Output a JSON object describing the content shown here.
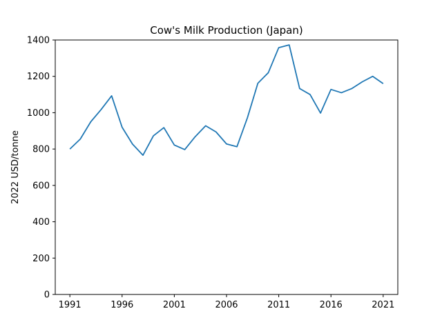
{
  "chart_data": {
    "type": "line",
    "title": "Cow's Milk Production (Japan)",
    "xlabel": "",
    "ylabel": "2022 USD/tonne",
    "xlim": [
      1989.6,
      2022.4
    ],
    "ylim": [
      0,
      1400
    ],
    "xticks": [
      1991,
      1996,
      2001,
      2006,
      2011,
      2016,
      2021
    ],
    "yticks": [
      0,
      200,
      400,
      600,
      800,
      1000,
      1200,
      1400
    ],
    "grid": false,
    "line_color": "#1f77b4",
    "series": [
      {
        "x": [
          1991,
          1992,
          1993,
          1994,
          1995,
          1996,
          1997,
          1998,
          1999,
          2000,
          2001,
          2002,
          2003,
          2004,
          2005,
          2006,
          2007,
          2008,
          2009,
          2010,
          2011,
          2012,
          2013,
          2014,
          2015,
          2016,
          2017,
          2018,
          2019,
          2020,
          2021
        ],
        "values": [
          800,
          855,
          950,
          1018,
          1093,
          920,
          827,
          766,
          873,
          918,
          822,
          797,
          868,
          928,
          894,
          828,
          813,
          972,
          1162,
          1220,
          1358,
          1373,
          1133,
          1100,
          998,
          1128,
          1110,
          1133,
          1170,
          1200,
          1160
        ]
      }
    ]
  }
}
